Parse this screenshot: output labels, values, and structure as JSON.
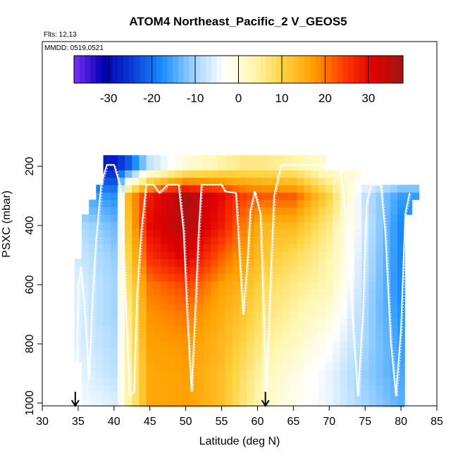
{
  "chart_data": {
    "type": "heatmap",
    "title": "ATOM4 Northeast_Pacific_2 V_GEOS5",
    "subtitle_lines": [
      "Flts: 12,13",
      "MMDD: 0519,0521"
    ],
    "xlabel": "Latitude (deg N)",
    "ylabel": "PSXC (mbar)",
    "xlim": [
      30,
      85
    ],
    "ylim": [
      1000,
      100
    ],
    "x_ticks": [
      30,
      35,
      40,
      45,
      50,
      55,
      60,
      65,
      70,
      75,
      80,
      85
    ],
    "y_ticks": [
      200,
      400,
      600,
      800,
      1000
    ],
    "colorbar": {
      "range": [
        -38,
        38
      ],
      "ticks": [
        -30,
        -20,
        -10,
        0,
        10,
        20,
        30
      ],
      "tick_labels": [
        "-30",
        "-20",
        "-10",
        "0",
        "10",
        "20",
        "30"
      ],
      "colors": [
        "#7b2ff7",
        "#0000b0",
        "#0a3fd8",
        "#1e90ff",
        "#9fd4ff",
        "#ffffff",
        "#fff7b0",
        "#ffd23f",
        "#ff9e00",
        "#ff3c00",
        "#e00000",
        "#a01515"
      ]
    },
    "grid": false,
    "legend": "colorbar top",
    "flight_markers": [
      {
        "label": "",
        "x": 34.6
      },
      {
        "label": "",
        "x": 61.1
      }
    ],
    "pressure_levels": [
      1000,
      950,
      900,
      850,
      800,
      750,
      700,
      650,
      600,
      550,
      500,
      450,
      400,
      350,
      300,
      250,
      200
    ],
    "lat_min": 34.5,
    "lat_max": 82,
    "lat_step": 1,
    "field": [
      {
        "lat": [
          34.5,
          82
        ],
        "p": 1000,
        "anchors": [
          [
            35,
            -4
          ],
          [
            40,
            -6
          ],
          [
            42,
            4
          ],
          [
            45,
            16
          ],
          [
            50,
            17
          ],
          [
            55,
            13
          ],
          [
            58,
            7
          ],
          [
            61,
            2
          ],
          [
            65,
            -2
          ],
          [
            70,
            -5
          ],
          [
            75,
            -10
          ],
          [
            80,
            -14
          ]
        ]
      },
      {
        "lat": [
          34.5,
          82
        ],
        "p": 900,
        "anchors": [
          [
            35,
            -5
          ],
          [
            40,
            -8
          ],
          [
            42,
            4
          ],
          [
            45,
            16
          ],
          [
            50,
            17
          ],
          [
            55,
            13
          ],
          [
            58,
            8
          ],
          [
            61,
            3
          ],
          [
            65,
            -1
          ],
          [
            70,
            -5
          ],
          [
            75,
            -11
          ],
          [
            80,
            -15
          ]
        ]
      },
      {
        "lat": [
          34.5,
          82
        ],
        "p": 800,
        "anchors": [
          [
            35,
            -6
          ],
          [
            40,
            -9
          ],
          [
            42,
            5
          ],
          [
            45,
            17
          ],
          [
            50,
            18
          ],
          [
            55,
            14
          ],
          [
            58,
            10
          ],
          [
            61,
            5
          ],
          [
            65,
            2
          ],
          [
            70,
            -3
          ],
          [
            75,
            -10
          ],
          [
            80,
            -16
          ]
        ]
      },
      {
        "lat": [
          34.5,
          82
        ],
        "p": 700,
        "anchors": [
          [
            35,
            -6
          ],
          [
            40,
            -10
          ],
          [
            42,
            6
          ],
          [
            45,
            18
          ],
          [
            50,
            20
          ],
          [
            55,
            15
          ],
          [
            58,
            12
          ],
          [
            61,
            7
          ],
          [
            65,
            4
          ],
          [
            70,
            0
          ],
          [
            75,
            -10
          ],
          [
            80,
            -17
          ]
        ]
      },
      {
        "lat": [
          34.5,
          82
        ],
        "p": 600,
        "anchors": [
          [
            35,
            -6
          ],
          [
            40,
            -10
          ],
          [
            42,
            8
          ],
          [
            45,
            20
          ],
          [
            50,
            24
          ],
          [
            55,
            17
          ],
          [
            58,
            14
          ],
          [
            61,
            9
          ],
          [
            65,
            6
          ],
          [
            70,
            3
          ],
          [
            75,
            -9
          ],
          [
            80,
            -18
          ]
        ]
      },
      {
        "lat": [
          34.5,
          82
        ],
        "p": 500,
        "anchors": [
          [
            35,
            -7
          ],
          [
            40,
            -11
          ],
          [
            42,
            10
          ],
          [
            45,
            26
          ],
          [
            50,
            32
          ],
          [
            55,
            22
          ],
          [
            58,
            17
          ],
          [
            61,
            12
          ],
          [
            65,
            9
          ],
          [
            70,
            4
          ],
          [
            75,
            -8
          ],
          [
            80,
            -18
          ]
        ]
      },
      {
        "lat": [
          34.5,
          82
        ],
        "p": 400,
        "anchors": [
          [
            35,
            -9
          ],
          [
            40,
            -13
          ],
          [
            42,
            12
          ],
          [
            45,
            30
          ],
          [
            50,
            36
          ],
          [
            55,
            28
          ],
          [
            58,
            20
          ],
          [
            61,
            14
          ],
          [
            65,
            14
          ],
          [
            70,
            6
          ],
          [
            75,
            -7
          ],
          [
            80,
            -18
          ]
        ]
      },
      {
        "lat": [
          34.5,
          82
        ],
        "p": 300,
        "anchors": [
          [
            35,
            -14
          ],
          [
            40,
            -17
          ],
          [
            42,
            14
          ],
          [
            45,
            28
          ],
          [
            50,
            37
          ],
          [
            55,
            30
          ],
          [
            58,
            24
          ],
          [
            61,
            22
          ],
          [
            65,
            22
          ],
          [
            70,
            10
          ],
          [
            75,
            -8
          ],
          [
            80,
            -16
          ]
        ]
      },
      {
        "lat": [
          34.5,
          82
        ],
        "p": 200,
        "anchors": [
          [
            35,
            -28
          ],
          [
            40,
            -28
          ],
          [
            42,
            -22
          ],
          [
            45,
            -8
          ],
          [
            50,
            0
          ],
          [
            55,
            4
          ],
          [
            58,
            6
          ],
          [
            61,
            6
          ],
          [
            65,
            4
          ],
          [
            70,
            0
          ],
          [
            75,
            0
          ],
          [
            80,
            0
          ]
        ]
      }
    ],
    "coverage": [
      {
        "p_top": 175,
        "lat": [
          38.5,
          69
        ]
      },
      {
        "p_top": 212,
        "lat": [
          38.5,
          74.5
        ]
      },
      {
        "p_top": 262,
        "lat": [
          37.3,
          82
        ]
      },
      {
        "p_top": 312,
        "lat": [
          36.8,
          81
        ]
      },
      {
        "p_top": 362,
        "lat": [
          35.7,
          80
        ]
      },
      {
        "p_top": 412,
        "lat": [
          35.6,
          80
        ]
      },
      {
        "p_top": 512,
        "lat": [
          35,
          80
        ]
      },
      {
        "p_top": 562,
        "lat": [
          35,
          80
        ]
      },
      {
        "p_top": 762,
        "lat": [
          34.5,
          80
        ]
      },
      {
        "p_top": 862,
        "lat": [
          35.5,
          80
        ]
      },
      {
        "p_top": 937,
        "lat": [
          36,
          80
        ]
      }
    ],
    "flight_track": [
      [
        34.8,
        975
      ],
      [
        35,
        600
      ],
      [
        35.4,
        540
      ],
      [
        36,
        720
      ],
      [
        36.5,
        920
      ],
      [
        37,
        640
      ],
      [
        37.5,
        450
      ],
      [
        38.2,
        262
      ],
      [
        39,
        195
      ],
      [
        40,
        195
      ],
      [
        40.8,
        262
      ],
      [
        41.3,
        480
      ],
      [
        41.8,
        760
      ],
      [
        42.2,
        975
      ],
      [
        42.8,
        960
      ],
      [
        43.2,
        640
      ],
      [
        43.8,
        420
      ],
      [
        44.5,
        262
      ],
      [
        45.5,
        262
      ],
      [
        46.3,
        290
      ],
      [
        47.5,
        262
      ],
      [
        49,
        262
      ],
      [
        49.7,
        420
      ],
      [
        50.2,
        700
      ],
      [
        50.8,
        960
      ],
      [
        51.3,
        700
      ],
      [
        51.8,
        420
      ],
      [
        52.2,
        262
      ],
      [
        55,
        262
      ],
      [
        55.5,
        285
      ],
      [
        57,
        290
      ],
      [
        57.5,
        500
      ],
      [
        58,
        700
      ],
      [
        58.6,
        520
      ],
      [
        59,
        350
      ],
      [
        59.6,
        285
      ],
      [
        60.4,
        360
      ],
      [
        60.9,
        720
      ],
      [
        61.2,
        980
      ],
      [
        61.8,
        600
      ],
      [
        62.3,
        300
      ],
      [
        63.3,
        195
      ],
      [
        69,
        195
      ],
      [
        69.5,
        210
      ],
      [
        71.5,
        210
      ],
      [
        72,
        300
      ],
      [
        73,
        620
      ],
      [
        74,
        975
      ],
      [
        74.7,
        700
      ],
      [
        75.2,
        330
      ],
      [
        75.8,
        262
      ],
      [
        77.2,
        262
      ],
      [
        77.8,
        420
      ],
      [
        78.6,
        800
      ],
      [
        79.3,
        975
      ],
      [
        80,
        750
      ],
      [
        80.6,
        360
      ],
      [
        81.2,
        290
      ]
    ]
  }
}
